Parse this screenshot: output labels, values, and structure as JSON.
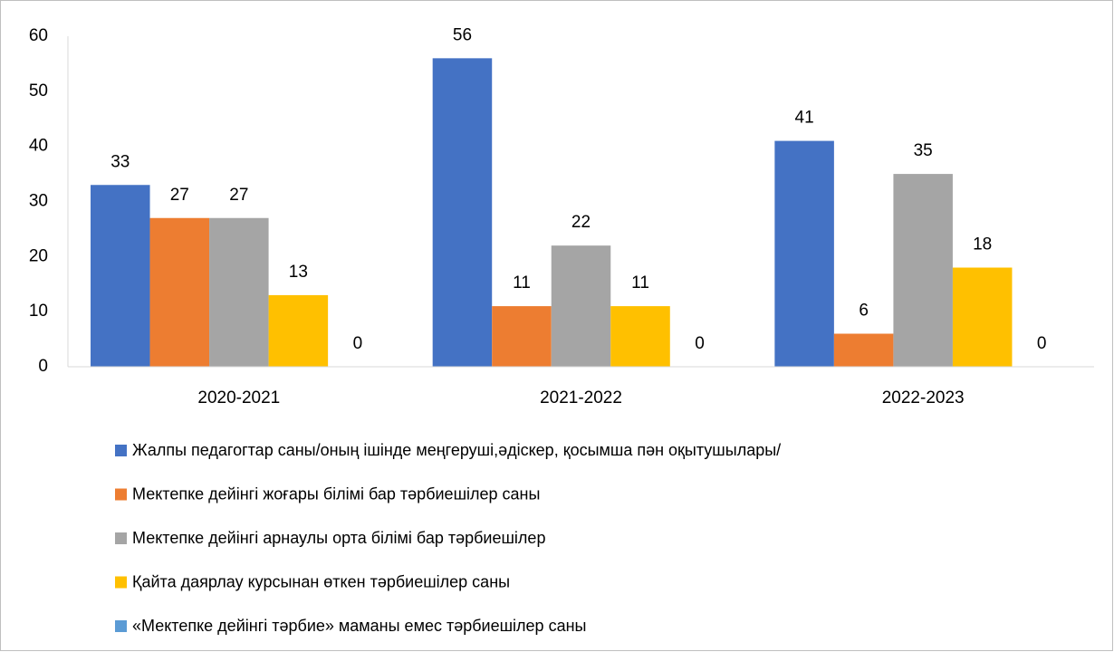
{
  "chart_data": {
    "type": "bar",
    "categories": [
      "2020-2021",
      "2021-2022",
      "2022-2023"
    ],
    "series": [
      {
        "name": "Жалпы педагогтар саны/оның ішінде меңгеруші,әдіскер, қосымша пән оқытушылары/",
        "color": "#4472c4",
        "values": [
          33,
          56,
          41
        ]
      },
      {
        "name": "Мектепке дейінгі жоғары білімі бар тәрбиешілер саны",
        "color": "#ed7d31",
        "values": [
          27,
          11,
          6
        ]
      },
      {
        "name": "Мектепке дейінгі арнаулы орта білімі бар тәрбиешілер",
        "color": "#a5a5a5",
        "values": [
          27,
          22,
          35
        ]
      },
      {
        "name": "Қайта даярлау курсынан өткен тәрбиешілер саны",
        "color": "#ffc000",
        "values": [
          13,
          11,
          18
        ]
      },
      {
        "name": "«Мектепке дейінгі тәрбие» маманы емес тәрбиешілер саны",
        "color": "#5b9bd5",
        "values": [
          0,
          0,
          0
        ]
      }
    ],
    "ylim": [
      0,
      60
    ],
    "yticks": [
      0,
      10,
      20,
      30,
      40,
      50,
      60
    ],
    "grid": false,
    "legend": "bottom"
  }
}
